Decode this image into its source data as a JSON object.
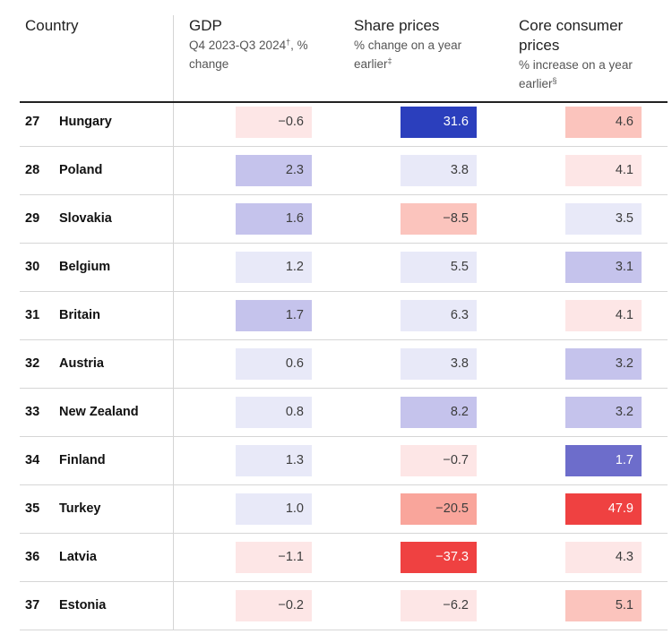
{
  "chart_data": {
    "type": "table",
    "columns": [
      {
        "key": "country",
        "title": "Country",
        "subtitle": ""
      },
      {
        "key": "gdp",
        "title": "GDP",
        "subtitle": "Q4 2023-Q3 2024",
        "marker": "†",
        "suffix": ", % change"
      },
      {
        "key": "share_prices",
        "title": "Share prices",
        "subtitle": "% change on a year earlier",
        "marker": "‡",
        "suffix": ""
      },
      {
        "key": "core_prices",
        "title": "Core consumer prices",
        "subtitle": "% increase on a year earlier",
        "marker": "§",
        "suffix": ""
      }
    ],
    "rows": [
      {
        "rank": "27",
        "country": "Hungary",
        "gdp": "−0.6",
        "share_prices": "31.6",
        "core_prices": "4.6",
        "gdp_color": "#fde6e6",
        "share_prices_color": "#2b3fbd",
        "core_prices_color": "#fbc4bd"
      },
      {
        "rank": "28",
        "country": "Poland",
        "gdp": "2.3",
        "share_prices": "3.8",
        "core_prices": "4.1",
        "gdp_color": "#c5c3ec",
        "share_prices_color": "#e8e9f8",
        "core_prices_color": "#fde6e6"
      },
      {
        "rank": "29",
        "country": "Slovakia",
        "gdp": "1.6",
        "share_prices": "−8.5",
        "core_prices": "3.5",
        "gdp_color": "#c5c3ec",
        "share_prices_color": "#fbc4bd",
        "core_prices_color": "#e8e9f8"
      },
      {
        "rank": "30",
        "country": "Belgium",
        "gdp": "1.2",
        "share_prices": "5.5",
        "core_prices": "3.1",
        "gdp_color": "#e8e9f8",
        "share_prices_color": "#e8e9f8",
        "core_prices_color": "#c5c3ec"
      },
      {
        "rank": "31",
        "country": "Britain",
        "gdp": "1.7",
        "share_prices": "6.3",
        "core_prices": "4.1",
        "gdp_color": "#c5c3ec",
        "share_prices_color": "#e8e9f8",
        "core_prices_color": "#fde6e6"
      },
      {
        "rank": "32",
        "country": "Austria",
        "gdp": "0.6",
        "share_prices": "3.8",
        "core_prices": "3.2",
        "gdp_color": "#e8e9f8",
        "share_prices_color": "#e8e9f8",
        "core_prices_color": "#c5c3ec"
      },
      {
        "rank": "33",
        "country": "New Zealand",
        "gdp": "0.8",
        "share_prices": "8.2",
        "core_prices": "3.2",
        "gdp_color": "#e8e9f8",
        "share_prices_color": "#c5c3ec",
        "core_prices_color": "#c5c3ec"
      },
      {
        "rank": "34",
        "country": "Finland",
        "gdp": "1.3",
        "share_prices": "−0.7",
        "core_prices": "1.7",
        "gdp_color": "#e8e9f8",
        "share_prices_color": "#fde6e6",
        "core_prices_color": "#6d6dcb"
      },
      {
        "rank": "35",
        "country": "Turkey",
        "gdp": "1.0",
        "share_prices": "−20.5",
        "core_prices": "47.9",
        "gdp_color": "#e8e9f8",
        "share_prices_color": "#f9a59b",
        "core_prices_color": "#ef4141"
      },
      {
        "rank": "36",
        "country": "Latvia",
        "gdp": "−1.1",
        "share_prices": "−37.3",
        "core_prices": "4.3",
        "gdp_color": "#fde6e6",
        "share_prices_color": "#ef4141",
        "core_prices_color": "#fde6e6"
      },
      {
        "rank": "37",
        "country": "Estonia",
        "gdp": "−0.2",
        "share_prices": "−6.2",
        "core_prices": "5.1",
        "gdp_color": "#fde6e6",
        "share_prices_color": "#fde6e6",
        "core_prices_color": "#fbc4bd"
      }
    ]
  }
}
